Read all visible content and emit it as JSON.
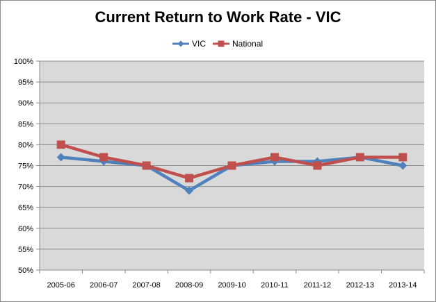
{
  "chart_data": {
    "type": "line",
    "title": "Current Return to Work Rate - VIC",
    "xlabel": "",
    "ylabel": "",
    "categories": [
      "2005-06",
      "2006-07",
      "2007-08",
      "2008-09",
      "2009-10",
      "2010-11",
      "2011-12",
      "2012-13",
      "2013-14"
    ],
    "ylim": [
      50,
      100
    ],
    "y_ticks": [
      50,
      55,
      60,
      65,
      70,
      75,
      80,
      85,
      90,
      95,
      100
    ],
    "y_tick_labels": [
      "50%",
      "55%",
      "60%",
      "65%",
      "70%",
      "75%",
      "80%",
      "85%",
      "90%",
      "95%",
      "100%"
    ],
    "grid": true,
    "legend_position": "top-center",
    "series": [
      {
        "name": "VIC",
        "marker": "diamond",
        "color": "#4f81bd",
        "values": [
          77,
          76,
          75,
          69,
          75,
          76,
          76,
          77,
          75
        ]
      },
      {
        "name": "National",
        "marker": "square",
        "color": "#c0504d",
        "values": [
          80,
          77,
          75,
          72,
          75,
          77,
          75,
          77,
          77
        ]
      }
    ],
    "plot_background": "#d9d9d9"
  }
}
